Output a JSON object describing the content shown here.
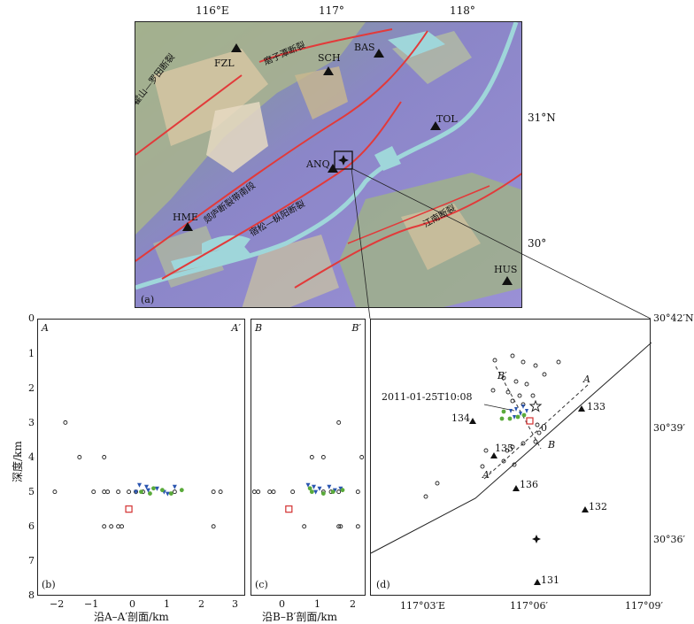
{
  "map_a": {
    "panel_label": "(a)",
    "lon_ticks": [
      "116°E",
      "117°",
      "118°"
    ],
    "lat_ticks": [
      "31°N",
      "30°"
    ],
    "stations": [
      "FZL",
      "SCH",
      "BAS",
      "TOL",
      "ANQ",
      "HME",
      "HUS"
    ],
    "faults": [
      "霍山—罗田断裂",
      "磨子潭断裂",
      "郯庐断裂带南段",
      "宿松—枞阳断裂",
      "江南断裂"
    ]
  },
  "section_b": {
    "panel_label": "(b)",
    "left_end": "A",
    "right_end": "A′",
    "xlabel": "沿A–A′剖面/km",
    "xticks": [
      "−2",
      "−1",
      "0",
      "1",
      "2",
      "3"
    ]
  },
  "section_c": {
    "panel_label": "(c)",
    "left_end": "B",
    "right_end": "B′",
    "xlabel": "沿B–B′剖面/km",
    "xticks": [
      "0",
      "1",
      "2"
    ]
  },
  "depth_axis": {
    "label": "深度/km",
    "ticks": [
      "0",
      "1",
      "2",
      "3",
      "4",
      "5",
      "6",
      "7",
      "8"
    ]
  },
  "map_d": {
    "panel_label": "(d)",
    "event_label": "2011-01-25T10:08",
    "stations": [
      "133",
      "134",
      "135",
      "136",
      "132",
      "131"
    ],
    "profile_labels": [
      "A",
      "A′",
      "B",
      "B′"
    ],
    "center_mark": "0",
    "lon_ticks": [
      "117°03′E",
      "117°06′",
      "117°09′"
    ],
    "lat_ticks": [
      "30°42′N",
      "30°39′",
      "30°36′"
    ]
  },
  "chart_data": [
    {
      "type": "scatter",
      "title": "",
      "xlabel": "沿A–A′剖面/km",
      "ylabel": "深度/km",
      "xlim": [
        -2.6,
        3.3
      ],
      "ylim": [
        8,
        0
      ],
      "series": [
        {
          "marker": "circle",
          "points": [
            [
              -1.8,
              3
            ],
            [
              -1.4,
              4
            ],
            [
              -0.7,
              4
            ],
            [
              -2.1,
              5
            ],
            [
              -1.0,
              5
            ],
            [
              -0.7,
              5
            ],
            [
              -0.6,
              5
            ],
            [
              -0.3,
              5
            ],
            [
              0,
              5
            ],
            [
              0.2,
              5
            ],
            [
              0.4,
              5
            ],
            [
              1.3,
              5
            ],
            [
              2.4,
              5
            ],
            [
              2.6,
              5
            ],
            [
              -0.7,
              6
            ],
            [
              -0.5,
              6
            ],
            [
              -0.3,
              6
            ],
            [
              -0.2,
              6
            ],
            [
              2.4,
              6
            ]
          ]
        },
        {
          "marker": "triangle",
          "color": "#2a55b0",
          "points": [
            [
              0.3,
              4.8
            ],
            [
              0.5,
              4.85
            ],
            [
              0.55,
              4.95
            ],
            [
              0.8,
              4.9
            ],
            [
              1.0,
              5.0
            ],
            [
              1.1,
              5.05
            ],
            [
              1.3,
              4.85
            ],
            [
              0.2,
              5.0
            ]
          ]
        },
        {
          "marker": "dot",
          "color": "#5aaa3a",
          "points": [
            [
              0.35,
              5.0
            ],
            [
              0.6,
              5.05
            ],
            [
              0.7,
              4.9
            ],
            [
              0.95,
              4.95
            ],
            [
              1.2,
              5.05
            ],
            [
              1.5,
              4.95
            ]
          ]
        },
        {
          "marker": "square",
          "color": "#d33030",
          "points": [
            [
              0,
              5.5
            ]
          ]
        }
      ]
    },
    {
      "type": "scatter",
      "title": "",
      "xlabel": "沿B–B′剖面/km",
      "ylabel": "深度/km",
      "xlim": [
        -0.6,
        2.4
      ],
      "ylim": [
        8,
        0
      ],
      "series": [
        {
          "marker": "circle",
          "points": [
            [
              1.7,
              3
            ],
            [
              1.0,
              4
            ],
            [
              1.3,
              4
            ],
            [
              2.3,
              4
            ],
            [
              -0.5,
              5
            ],
            [
              -0.4,
              5
            ],
            [
              -0.1,
              5
            ],
            [
              0,
              5
            ],
            [
              0.5,
              5
            ],
            [
              1.3,
              5
            ],
            [
              1.5,
              5
            ],
            [
              1.7,
              5
            ],
            [
              2.2,
              5
            ],
            [
              0.8,
              6
            ],
            [
              1.7,
              6
            ],
            [
              1.75,
              6
            ],
            [
              2.2,
              6
            ]
          ]
        },
        {
          "marker": "triangle",
          "color": "#2a55b0",
          "points": [
            [
              0.9,
              4.8
            ],
            [
              1.05,
              4.85
            ],
            [
              1.2,
              4.9
            ],
            [
              1.45,
              4.85
            ],
            [
              1.6,
              4.95
            ],
            [
              1.75,
              4.9
            ],
            [
              1.1,
              5.0
            ]
          ]
        },
        {
          "marker": "dot",
          "color": "#5aaa3a",
          "points": [
            [
              1.0,
              5.0
            ],
            [
              1.3,
              5.05
            ],
            [
              1.55,
              5.0
            ],
            [
              1.8,
              4.95
            ],
            [
              0.95,
              4.9
            ]
          ]
        },
        {
          "marker": "square",
          "color": "#d33030",
          "points": [
            [
              0.4,
              5.5
            ]
          ]
        }
      ]
    }
  ]
}
